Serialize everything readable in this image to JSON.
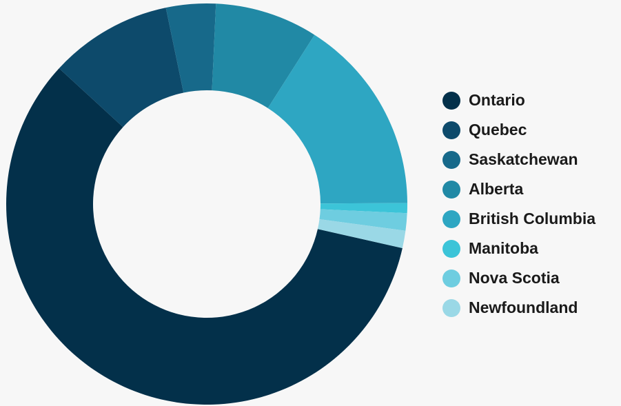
{
  "chart_data": {
    "type": "donut",
    "categories": [
      "Ontario",
      "Quebec",
      "Saskatchewan",
      "Alberta",
      "British Columbia",
      "Manitoba",
      "Nova Scotia",
      "Newfoundland"
    ],
    "values": [
      58.3,
      9.9,
      4.0,
      8.3,
      15.9,
      0.8,
      1.4,
      1.4
    ],
    "colors": [
      "#03304a",
      "#0d4a6b",
      "#17698a",
      "#2189a5",
      "#2ea6c2",
      "#3cc4d8",
      "#6ecde0",
      "#9ad8e6"
    ],
    "legend": "right"
  }
}
